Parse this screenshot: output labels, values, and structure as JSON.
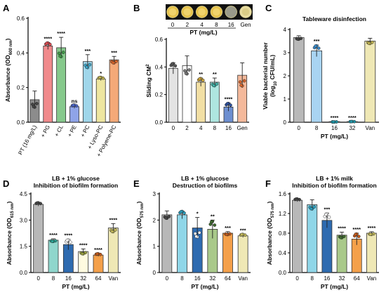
{
  "chart_data": [
    {
      "id": "A",
      "type": "bar",
      "letter": "A",
      "title": "",
      "ylabel": "Absorbance (OD600 nm)",
      "xlabel": "",
      "ylim": [
        0,
        0.6
      ],
      "yticks": [
        0.0,
        0.2,
        0.4,
        0.6
      ],
      "ytick_labels": [
        "0.0",
        "0.2",
        "0.4",
        "0.6"
      ],
      "categories": [
        "PT (16 mg/L)",
        "+ PG",
        "+ CL",
        "+ PE",
        "+ PC",
        "+ Lyso-PC",
        "+ Polyene-PC"
      ],
      "values": [
        0.13,
        0.44,
        0.43,
        0.09,
        0.35,
        0.25,
        0.36
      ],
      "errors": [
        0.05,
        0.02,
        0.06,
        0.01,
        0.04,
        0.01,
        0.02
      ],
      "colors": [
        "#8c8c8c",
        "#f08a8c",
        "#86c98c",
        "#8fa4e8",
        "#9fd6ea",
        "#eee6a0",
        "#f4a978"
      ],
      "dot_colors": [
        "#444444",
        "#d94a50",
        "#3f9c48",
        "#4a64c8",
        "#3ca5c8",
        "#bfb250",
        "#d9652a"
      ],
      "annotations": [
        "",
        "****",
        "****",
        "ns",
        "***",
        "*",
        "***"
      ]
    },
    {
      "id": "B",
      "type": "bar",
      "letter": "B",
      "title": "",
      "ylabel": "Sliding CM2",
      "xlabel": "",
      "ylim": [
        0,
        0.6
      ],
      "yticks": [
        0.0,
        0.2,
        0.4,
        0.6
      ],
      "ytick_labels": [
        "0.0",
        "0.2",
        "0.4",
        "0.6"
      ],
      "categories": [
        "0",
        "2",
        "4",
        "8",
        "16",
        "Gen"
      ],
      "values": [
        0.39,
        0.41,
        0.29,
        0.29,
        0.11,
        0.34
      ],
      "errors": [
        0.04,
        0.07,
        0.03,
        0.03,
        0.03,
        0.09
      ],
      "colors": [
        "#e3e3e3",
        "#ffffff",
        "#f2dfa4",
        "#aee6e0",
        "#6d8fd0",
        "#f4b99b"
      ],
      "dot_colors": [
        "#555555",
        "#777777",
        "#c9a23a",
        "#3fb2a8",
        "#2c4f9c",
        "#d9652a"
      ],
      "annotations": [
        "",
        "",
        "**",
        "**",
        "****",
        ""
      ],
      "inset_label": "PT (mg/L)",
      "inset_ticks": [
        "0",
        "2",
        "4",
        "8",
        "16",
        "Gen"
      ]
    },
    {
      "id": "C",
      "type": "bar",
      "letter": "C",
      "title": "Tableware disinfection",
      "ylabel": "Viable bacterial number (log10 CFU/mL)",
      "xlabel": "PT (mg/L)",
      "ylim": [
        0,
        4
      ],
      "yticks": [
        0,
        1,
        2,
        3,
        4
      ],
      "ytick_labels": [
        "0",
        "1",
        "2",
        "3",
        "4"
      ],
      "categories": [
        "0",
        "8",
        "16",
        "32",
        "Van"
      ],
      "values": [
        3.65,
        3.08,
        0.02,
        0.02,
        3.5
      ],
      "errors": [
        0.08,
        0.25,
        0.01,
        0.01,
        0.12
      ],
      "colors": [
        "#b8b8b8",
        "#a9d4f2",
        "#6fd0de",
        "#6fd0de",
        "#efe8b5"
      ],
      "dot_colors": [
        "#444444",
        "#3a8ccc",
        "#1f98aa",
        "#1f98aa",
        "#bfb250"
      ],
      "annotations": [
        "",
        "***",
        "****",
        "****",
        ""
      ]
    },
    {
      "id": "D",
      "type": "bar",
      "letter": "D",
      "title": "LB + 1% glucose",
      "subtitle": "Inhibition of biofilm formation",
      "ylabel": "Absorbance (OD615 nm)",
      "xlabel": "PT (mg/L)",
      "ylim": [
        0,
        4.5
      ],
      "yticks": [
        0.0,
        1.5,
        3.0,
        4.5
      ],
      "ytick_labels": [
        "0.0",
        "1.5",
        "3.0",
        "4.5"
      ],
      "categories": [
        "0",
        "8",
        "16",
        "32",
        "64",
        "Van"
      ],
      "values": [
        3.9,
        1.85,
        1.6,
        1.2,
        1.0,
        2.55
      ],
      "errors": [
        0.1,
        0.08,
        0.3,
        0.15,
        0.08,
        0.25
      ],
      "colors": [
        "#b8b8b8",
        "#8fd6cc",
        "#2e6bb0",
        "#fffbe0",
        "#f4a04a",
        "#efe8b5"
      ],
      "dot_colors": [
        "#444444",
        "#2aa696",
        "#ffffff",
        "#99a040",
        "#c45a1a",
        "#c2b85a"
      ],
      "annotations": [
        "",
        "****",
        "****",
        "****",
        "****",
        "****"
      ]
    },
    {
      "id": "E",
      "type": "bar",
      "letter": "E",
      "title": "LB + 1% glucose",
      "subtitle": "Destruction of biofilms",
      "ylabel": "Absorbance (OD575 nm)",
      "xlabel": "PT (mg/L)",
      "ylim": [
        0,
        3
      ],
      "yticks": [
        0,
        1,
        2,
        3
      ],
      "ytick_labels": [
        "0",
        "1",
        "2",
        "3"
      ],
      "categories": [
        "0",
        "8",
        "16",
        "32",
        "64",
        "Van"
      ],
      "values": [
        2.2,
        2.2,
        1.7,
        1.65,
        1.5,
        1.4
      ],
      "errors": [
        0.15,
        0.15,
        0.4,
        0.35,
        0.06,
        0.06
      ],
      "colors": [
        "#b8b8b8",
        "#8fd6e8",
        "#2e6bb0",
        "#a9c98a",
        "#f4a04a",
        "#efe8b5"
      ],
      "dot_colors": [
        "#444444",
        "#2a9fbf",
        "#ffffff",
        "#3e6a2e",
        "#c45a1a",
        "#c2b85a"
      ],
      "annotations": [
        "",
        "",
        "*",
        "**",
        "***",
        "***"
      ]
    },
    {
      "id": "F",
      "type": "bar",
      "letter": "F",
      "title": "LB + 1% milk",
      "subtitle": "Inhibition of biofilm formation",
      "ylabel": "Absorbance (OD575 nm)",
      "xlabel": "PT (mg/L)",
      "ylim": [
        0,
        1.6
      ],
      "yticks": [
        0.0,
        0.4,
        0.8,
        1.2,
        1.6
      ],
      "ytick_labels": [
        "0.0",
        "0.4",
        "0.8",
        "1.2",
        "1.6"
      ],
      "categories": [
        "0",
        "8",
        "16",
        "32",
        "64",
        "Van"
      ],
      "values": [
        1.47,
        1.38,
        1.06,
        0.76,
        0.68,
        0.8
      ],
      "errors": [
        0.03,
        0.1,
        0.15,
        0.06,
        0.12,
        0.03
      ],
      "colors": [
        "#b8b8b8",
        "#8fd6e8",
        "#2e6bb0",
        "#a9c98a",
        "#f4a04a",
        "#efe8b5"
      ],
      "dot_colors": [
        "#444444",
        "#2a9fbf",
        "#ffffff",
        "#3e6a2e",
        "#c45a1a",
        "#c2b85a"
      ],
      "annotations": [
        "",
        "",
        "***",
        "****",
        "****",
        "****"
      ]
    }
  ]
}
